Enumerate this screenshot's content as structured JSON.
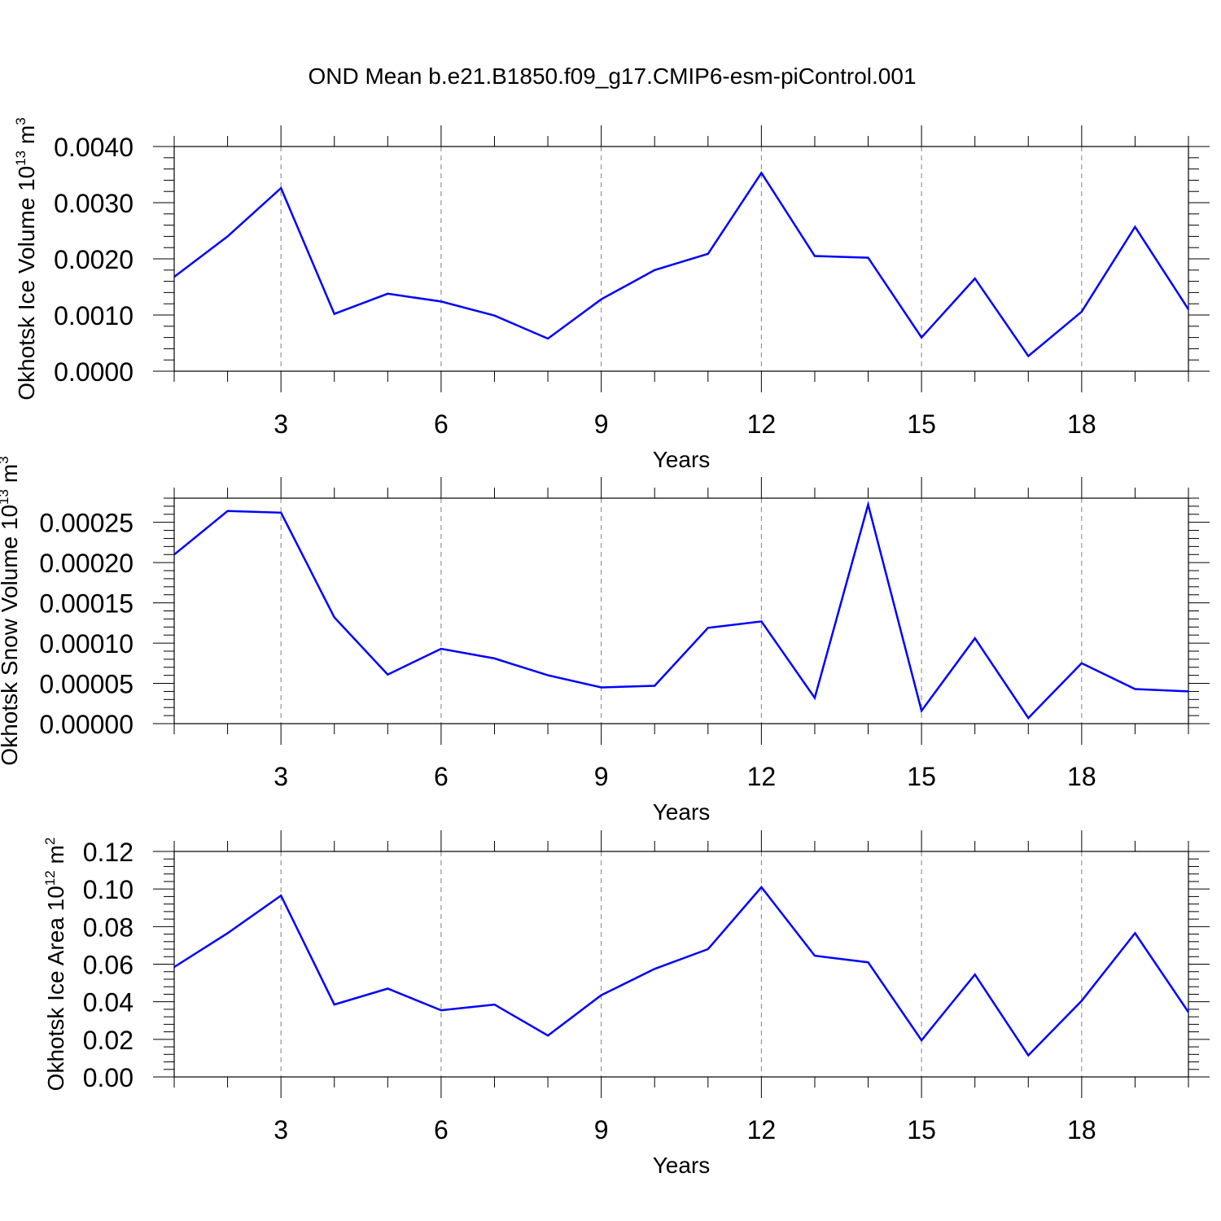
{
  "figure": {
    "title": "OND Mean b.e21.B1850.f09_g17.CMIP6-esm-piControl.001",
    "line_color": "#0000ff"
  },
  "chart_data": [
    {
      "type": "line",
      "xlabel": "Years",
      "ylabel": "Okhotsk Ice Volume 10",
      "ylabel_exp": "13",
      "ylabel_unit": " m",
      "ylabel_unit_exp": "3",
      "xlim": [
        1,
        20
      ],
      "ylim": [
        0,
        0.004
      ],
      "x_ticks": [
        3,
        6,
        9,
        12,
        15,
        18
      ],
      "x_tick_labels": [
        "3",
        "6",
        "9",
        "12",
        "15",
        "18"
      ],
      "y_ticks": [
        0,
        0.001,
        0.002,
        0.003,
        0.004
      ],
      "y_tick_labels": [
        "0.0000",
        "0.0010",
        "0.0020",
        "0.0030",
        "0.0040"
      ],
      "grid": "vertical-dashed",
      "x": [
        1,
        2,
        3,
        4,
        5,
        6,
        7,
        8,
        9,
        10,
        11,
        12,
        13,
        14,
        15,
        16,
        17,
        18,
        19,
        20
      ],
      "series": [
        {
          "values": [
            0.00168,
            0.0024,
            0.00326,
            0.00102,
            0.00138,
            0.00124,
            0.00099,
            0.00058,
            0.00128,
            0.0018,
            0.00209,
            0.00353,
            0.00205,
            0.00202,
            0.0006,
            0.00165,
            0.00027,
            0.00106,
            0.00257,
            0.0011
          ]
        }
      ]
    },
    {
      "type": "line",
      "xlabel": "Years",
      "ylabel": "Okhotsk Snow Volume 10",
      "ylabel_exp": "13",
      "ylabel_unit": " m",
      "ylabel_unit_exp": "3",
      "xlim": [
        1,
        20
      ],
      "ylim": [
        0,
        0.00028
      ],
      "x_ticks": [
        3,
        6,
        9,
        12,
        15,
        18
      ],
      "x_tick_labels": [
        "3",
        "6",
        "9",
        "12",
        "15",
        "18"
      ],
      "y_ticks": [
        0,
        5e-05,
        0.0001,
        0.00015,
        0.0002,
        0.00025
      ],
      "y_tick_labels": [
        "0.00000",
        "0.00005",
        "0.00010",
        "0.00015",
        "0.00020",
        "0.00025"
      ],
      "grid": "vertical-dashed",
      "x": [
        1,
        2,
        3,
        4,
        5,
        6,
        7,
        8,
        9,
        10,
        11,
        12,
        13,
        14,
        15,
        16,
        17,
        18,
        19,
        20
      ],
      "series": [
        {
          "values": [
            0.00021,
            0.000264,
            0.000262,
            0.000132,
            6.1e-05,
            9.3e-05,
            8.1e-05,
            6e-05,
            4.5e-05,
            4.7e-05,
            0.000119,
            0.000127,
            3.2e-05,
            0.000272,
            1.6e-05,
            0.000106,
            7e-06,
            7.5e-05,
            4.3e-05,
            4e-05
          ]
        }
      ]
    },
    {
      "type": "line",
      "xlabel": "Years",
      "ylabel": "Okhotsk Ice Area 10",
      "ylabel_exp": "12",
      "ylabel_unit": " m",
      "ylabel_unit_exp": "2",
      "xlim": [
        1,
        20
      ],
      "ylim": [
        0,
        0.12
      ],
      "x_ticks": [
        3,
        6,
        9,
        12,
        15,
        18
      ],
      "x_tick_labels": [
        "3",
        "6",
        "9",
        "12",
        "15",
        "18"
      ],
      "y_ticks": [
        0,
        0.02,
        0.04,
        0.06,
        0.08,
        0.1,
        0.12
      ],
      "y_tick_labels": [
        "0.00",
        "0.02",
        "0.04",
        "0.06",
        "0.08",
        "0.10",
        "0.12"
      ],
      "grid": "vertical-dashed",
      "x": [
        1,
        2,
        3,
        4,
        5,
        6,
        7,
        8,
        9,
        10,
        11,
        12,
        13,
        14,
        15,
        16,
        17,
        18,
        19,
        20
      ],
      "series": [
        {
          "values": [
            0.0585,
            0.0765,
            0.0965,
            0.0385,
            0.047,
            0.0355,
            0.0385,
            0.022,
            0.0435,
            0.0575,
            0.068,
            0.101,
            0.0645,
            0.061,
            0.0195,
            0.0545,
            0.0115,
            0.0405,
            0.0765,
            0.0345
          ]
        }
      ]
    }
  ]
}
